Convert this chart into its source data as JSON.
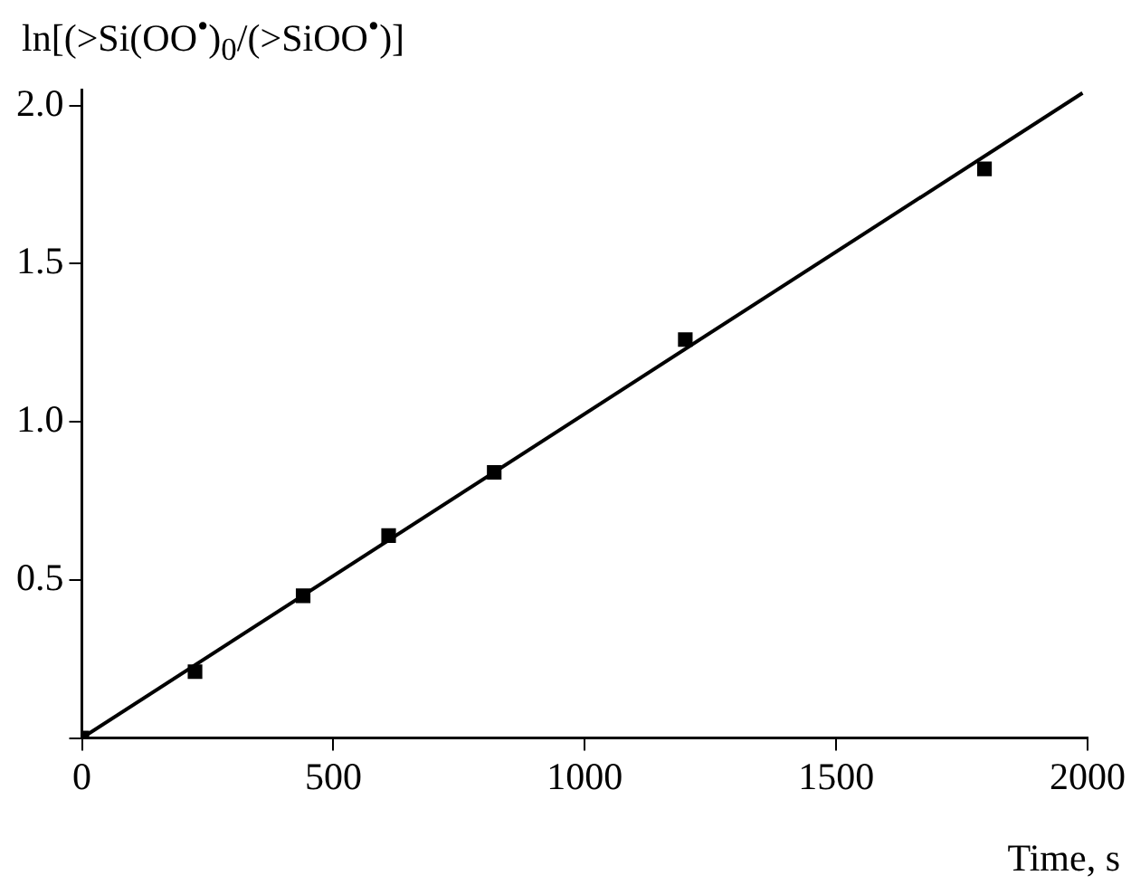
{
  "chart_data": {
    "type": "scatter",
    "ylabel": "ln[(>Si(OO$^{•}$)$_{0}$/(>SiOO$^{•}$)]",
    "xlabel": "Time, s",
    "xlim": [
      0,
      2000
    ],
    "xticks": [
      0,
      500,
      1000,
      1500,
      2000
    ],
    "ylim": [
      0,
      2.05
    ],
    "yticks": [
      {
        "value": 0,
        "label": null
      },
      0.5,
      {
        "value": 1,
        "label": "1.0"
      },
      1.5,
      {
        "value": 2,
        "label": "2.0"
      }
    ],
    "grid": false,
    "legend": false,
    "series": [
      {
        "type": "scatter",
        "marker": "square",
        "color": "#000000",
        "x": [
          0,
          225,
          440,
          610,
          820,
          1200,
          1795
        ],
        "values": [
          0,
          0.21,
          0.45,
          0.64,
          0.84,
          1.26,
          1.8
        ]
      },
      {
        "type": "line",
        "marker": "none",
        "color": "#000000",
        "x": [
          0,
          1990
        ],
        "values": [
          0,
          2.04
        ]
      }
    ]
  }
}
